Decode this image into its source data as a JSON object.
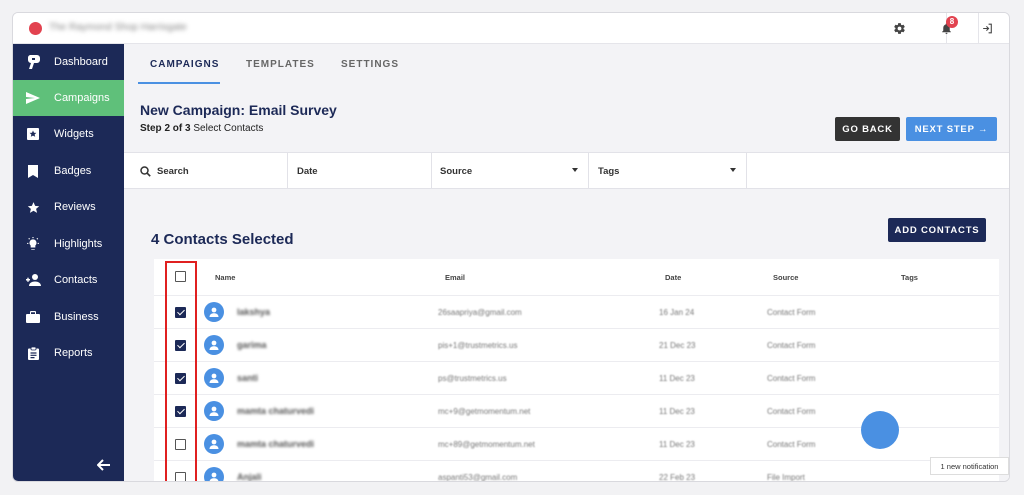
{
  "topbar": {
    "brand_name": "The Raymond Shop Harrisgate",
    "notification_count": "8"
  },
  "sidebar": {
    "items": [
      {
        "label": "Dashboard",
        "icon": "dashboard-icon",
        "active": false
      },
      {
        "label": "Campaigns",
        "icon": "send-icon",
        "active": true
      },
      {
        "label": "Widgets",
        "icon": "widget-icon",
        "active": false
      },
      {
        "label": "Badges",
        "icon": "bookmark-icon",
        "active": false
      },
      {
        "label": "Reviews",
        "icon": "star-icon",
        "active": false
      },
      {
        "label": "Highlights",
        "icon": "lightbulb-icon",
        "active": false
      },
      {
        "label": "Contacts",
        "icon": "person-add-icon",
        "active": false
      },
      {
        "label": "Business",
        "icon": "briefcase-icon",
        "active": false
      },
      {
        "label": "Reports",
        "icon": "clipboard-icon",
        "active": false
      }
    ]
  },
  "tabs": [
    "CAMPAIGNS",
    "TEMPLATES",
    "SETTINGS"
  ],
  "header": {
    "title": "New Campaign: Email Survey",
    "step_prefix": "Step 2 of 3",
    "step_label": "Select Contacts",
    "back_label": "GO BACK",
    "next_label": "NEXT STEP →"
  },
  "filters": {
    "search": "Search",
    "date": "Date",
    "source": "Source",
    "tags": "Tags"
  },
  "selection": {
    "count_label": "4 Contacts Selected",
    "add_label": "ADD CONTACTS"
  },
  "table": {
    "columns": [
      "Name",
      "Email",
      "Date",
      "Source",
      "Tags"
    ],
    "rows": [
      {
        "name": "lakshya",
        "email": "26saapriya@gmail.com",
        "date": "16 Jan 24",
        "source": "Contact Form",
        "checked": true
      },
      {
        "name": "garima",
        "email": "pis+1@trustmetrics.us",
        "date": "21 Dec 23",
        "source": "Contact Form",
        "checked": true
      },
      {
        "name": "santi",
        "email": "ps@trustmetrics.us",
        "date": "11 Dec 23",
        "source": "Contact Form",
        "checked": true
      },
      {
        "name": "mamta chaturvedi",
        "email": "mc+9@getmomentum.net",
        "date": "11 Dec 23",
        "source": "Contact Form",
        "checked": true
      },
      {
        "name": "mamta chaturvedi",
        "email": "mc+89@getmomentum.net",
        "date": "11 Dec 23",
        "source": "Contact Form",
        "checked": false
      },
      {
        "name": "Anjali",
        "email": "aspanti53@gmail.com",
        "date": "22 Feb 23",
        "source": "File Import",
        "checked": false
      }
    ]
  },
  "toast": "1 new notification",
  "colors": {
    "sidebar": "#1c2957",
    "active": "#5fc07a",
    "primary": "#4a90e2",
    "highlight": "#e02020"
  }
}
